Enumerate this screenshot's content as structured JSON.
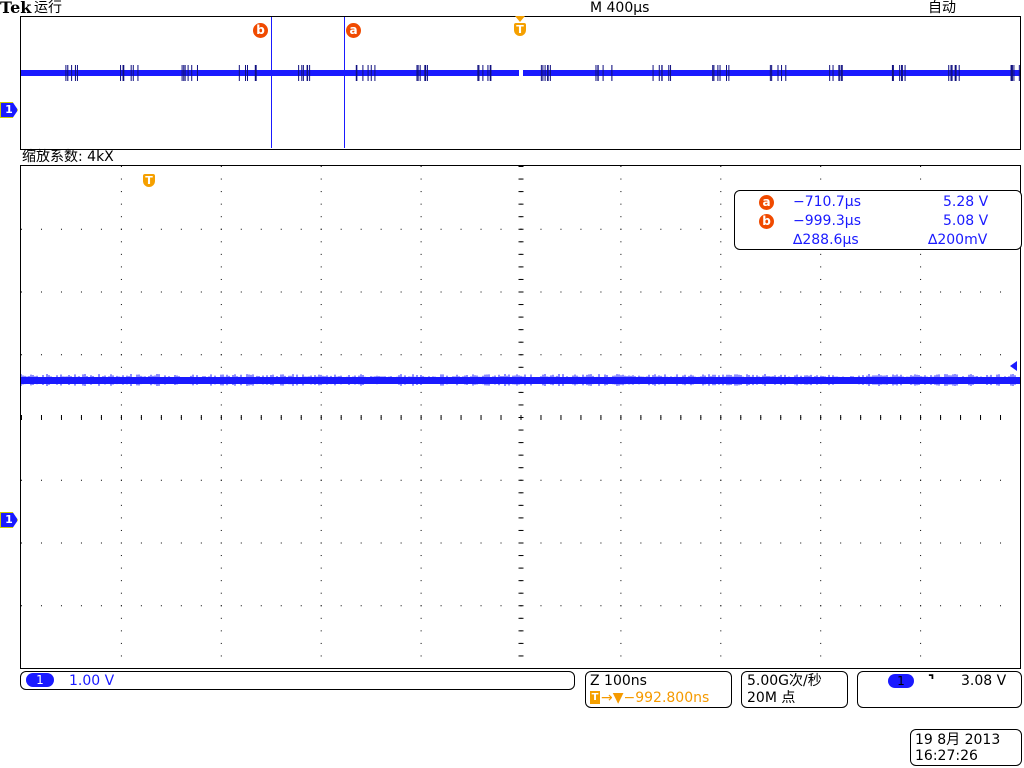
{
  "header": {
    "brand": "Tek",
    "status": "运行",
    "timebase": "M 400µs",
    "trigger_mode": "自动"
  },
  "overview": {
    "cursor_b_label": "b",
    "cursor_a_label": "a",
    "trigger_label": "T",
    "channel_label": "1"
  },
  "zoom_factor": "缩放系数: 4kX",
  "main": {
    "trigger_label": "T",
    "channel_label": "1"
  },
  "cursor_readout": {
    "a": {
      "label": "a",
      "time": "−710.7µs",
      "voltage": "5.28 V"
    },
    "b": {
      "label": "b",
      "time": "−999.3µs",
      "voltage": "5.08 V"
    },
    "delta": {
      "time": "∆288.6µs",
      "voltage": "∆200mV"
    }
  },
  "channel_box": {
    "channel": "1",
    "scale": "1.00 V"
  },
  "zoom_box": {
    "scale": "Z 100ns",
    "trigger_icon": "T",
    "position": "→▼−992.800ns"
  },
  "acq_box": {
    "rate": "5.00G次/秒",
    "points": "20M 点"
  },
  "trigger_box": {
    "channel": "1",
    "slope_icon": "falling-edge",
    "slope": "⌝",
    "level": "3.08 V"
  },
  "datetime": {
    "date": "19 8月  2013",
    "time": "16:27:26"
  },
  "colors": {
    "trace": "#1a1aff",
    "cursor": "#f04a00",
    "trigger": "#f5a000"
  }
}
